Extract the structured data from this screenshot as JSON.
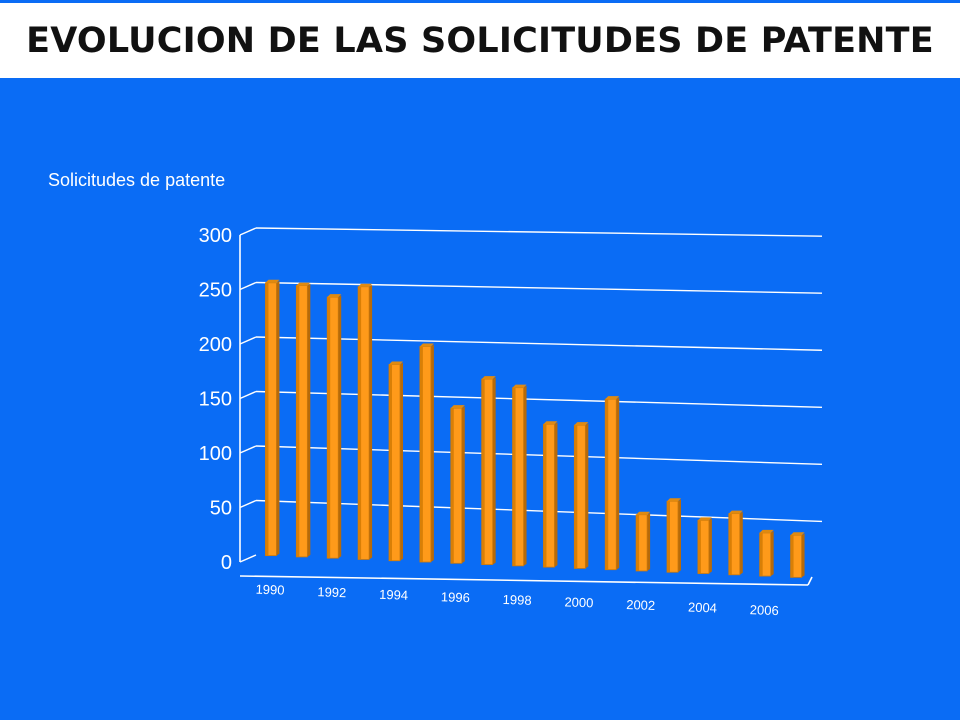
{
  "slide": {
    "title": "EVOLUCION DE LAS SOLICITUDES DE PATENTE",
    "background_color": "#0a6cf5"
  },
  "chart_data": {
    "type": "bar",
    "title": "",
    "ylabel": "Solicitudes de patente",
    "xlabel": "",
    "ylim": [
      0,
      300
    ],
    "yticks": [
      0,
      50,
      100,
      150,
      200,
      250,
      300
    ],
    "grid": true,
    "legend": "none",
    "bar_color": "#ff9a1a",
    "categories": [
      "1990",
      "1991",
      "1992",
      "1993",
      "1994",
      "1995",
      "1996",
      "1997",
      "1998",
      "1999",
      "2000",
      "2001",
      "2002",
      "2003",
      "2004",
      "2005",
      "2006",
      "2007"
    ],
    "visible_tick_labels": [
      "1990",
      "1992",
      "1994",
      "1996",
      "1998",
      "2000",
      "2002",
      "2004",
      "2006"
    ],
    "values": [
      250,
      248,
      238,
      248,
      178,
      195,
      140,
      167,
      160,
      128,
      128,
      152,
      50,
      63,
      47,
      54,
      38,
      37
    ]
  }
}
